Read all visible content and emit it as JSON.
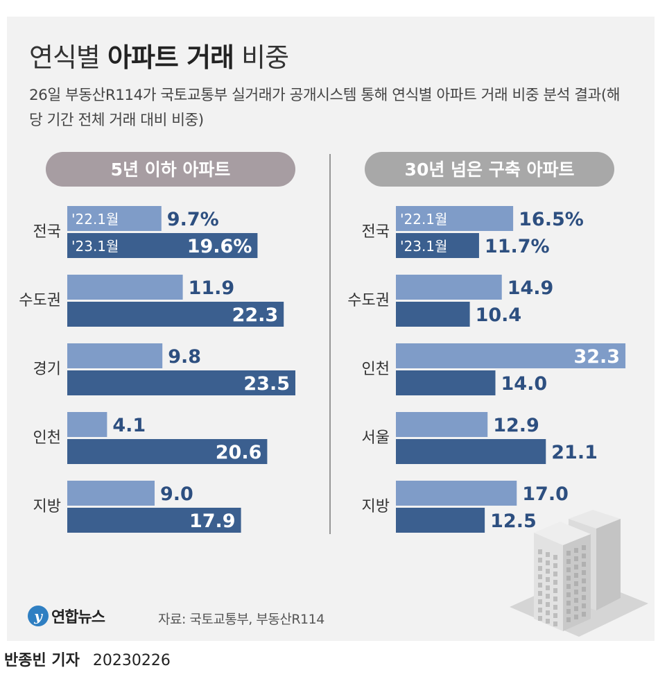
{
  "header": {
    "title_light_1": "연식별",
    "title_bold": "아파트 거래",
    "title_light_2": "비중",
    "subtitle": "26일 부동산R114가 국토교통부 실거래가 공개시스템 통해 연식별 아파트 거래 비중 분석 결과(해당 기간 전체 거래 대비 비중)"
  },
  "footer": {
    "logo_mark": "y",
    "logo_text": "연합뉴스",
    "source": "자료: 국토교통부, 부동산R114",
    "reporter": "반종빈 기자",
    "date": "20230226"
  },
  "colors": {
    "light_bar": "#7f9cc8",
    "dark_bar": "#3b5f8f",
    "value_text": "#2d4f80",
    "pill_left": "#a79da2",
    "pill_right": "#a8a8a8",
    "panel_bg": "#f2f2f2"
  },
  "chart_data": [
    {
      "type": "bar",
      "orientation": "horizontal",
      "title": "5년 이하 아파트",
      "unit": "%",
      "categories": [
        "전국",
        "수도권",
        "경기",
        "인천",
        "지방"
      ],
      "series": [
        {
          "name": "'22.1월",
          "values": [
            9.7,
            11.9,
            9.8,
            4.1,
            9.0
          ]
        },
        {
          "name": "'23.1월",
          "values": [
            19.6,
            22.3,
            23.5,
            20.6,
            17.9
          ]
        }
      ]
    },
    {
      "type": "bar",
      "orientation": "horizontal",
      "title": "30년 넘은 구축 아파트",
      "unit": "%",
      "categories": [
        "전국",
        "수도권",
        "인천",
        "서울",
        "지방"
      ],
      "series": [
        {
          "name": "'22.1월",
          "values": [
            16.5,
            14.9,
            32.3,
            12.9,
            17.0
          ]
        },
        {
          "name": "'23.1월",
          "values": [
            11.7,
            10.4,
            14.0,
            21.1,
            12.5
          ]
        }
      ]
    }
  ]
}
